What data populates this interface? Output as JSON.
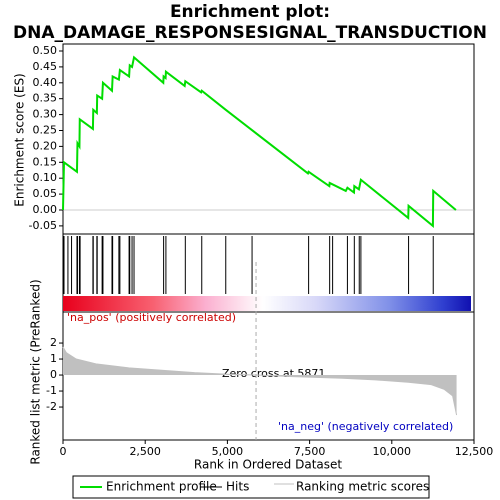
{
  "title": [
    "Enrichment plot:",
    "DNA_DAMAGE_RESPONSESIGNAL_TRANSDUCTION"
  ],
  "legend": [
    {
      "name": "Enrichment profile",
      "color": "#00dd00"
    },
    {
      "name": "Hits",
      "color": "#000000"
    },
    {
      "name": "Ranking metric scores",
      "color": "#c0c0c0"
    }
  ],
  "chart_data": [
    {
      "type": "line",
      "ylabel": "Enrichment score (ES)",
      "color": "#00dd00",
      "xlim": [
        0,
        12500
      ],
      "ylim": [
        -0.0755,
        0.522
      ],
      "yticks": [
        {
          "value": 0.5,
          "label": "0.50"
        },
        0.45,
        {
          "value": 0.4,
          "label": "0.40"
        },
        0.35,
        {
          "value": 0.3,
          "label": "0.30"
        },
        0.25,
        {
          "value": 0.2,
          "label": "0.20"
        },
        0.15,
        {
          "value": 0.1,
          "label": "0.10"
        },
        0.05,
        {
          "value": 0,
          "label": "0.00"
        },
        -0.05
      ],
      "x": [
        0,
        30,
        425,
        440,
        500,
        510,
        910,
        920,
        1030,
        1040,
        1190,
        1215,
        1490,
        1510,
        1700,
        1730,
        2010,
        2030,
        2100,
        2160,
        3050,
        3060,
        3120,
        3130,
        3700,
        3720,
        4200,
        4220,
        4950,
        7450,
        7470,
        8100,
        8110,
        8600,
        8650,
        8850,
        8860,
        9000,
        9060,
        10500,
        10510,
        11250,
        11260,
        11950
      ],
      "values": [
        0,
        0.15,
        0.12,
        0.21,
        0.2,
        0.285,
        0.255,
        0.315,
        0.305,
        0.36,
        0.35,
        0.4,
        0.375,
        0.42,
        0.41,
        0.44,
        0.42,
        0.455,
        0.45,
        0.48,
        0.4,
        0.42,
        0.415,
        0.435,
        0.39,
        0.405,
        0.37,
        0.375,
        0.315,
        0.115,
        0.12,
        0.075,
        0.085,
        0.06,
        0.07,
        0.055,
        0.075,
        0.065,
        0.095,
        -0.025,
        0.013,
        -0.05,
        0.06,
        0
      ]
    },
    {
      "type": "hits",
      "color": "#000000",
      "xlim": [
        0,
        12500
      ],
      "hits": [
        30,
        150,
        260,
        425,
        440,
        500,
        510,
        520,
        910,
        920,
        1030,
        1040,
        1190,
        1215,
        1490,
        1510,
        1700,
        1730,
        2010,
        2030,
        2100,
        2160,
        3060,
        3130,
        3720,
        4220,
        4950,
        5750,
        7470,
        8110,
        8200,
        8650,
        8860,
        9010,
        9060,
        10510,
        11260
      ]
    },
    {
      "type": "area",
      "ylabel": "Ranked list metric (PreRanked)",
      "xlabel": "Rank in Ordered Dataset",
      "color": "#c0c0c0",
      "xlim": [
        0,
        12500
      ],
      "ylim": [
        -4.06,
        3.94
      ],
      "xticks": [
        0,
        {
          "value": 2500,
          "label": "2,500"
        },
        {
          "value": 5000,
          "label": "5,000"
        },
        {
          "value": 7500,
          "label": "7,500"
        },
        {
          "value": 10000,
          "label": "10,000"
        },
        {
          "value": 12500,
          "label": "12,500"
        }
      ],
      "yticks": [
        2,
        1,
        0,
        -1,
        -2
      ],
      "x": [
        0,
        100,
        400,
        1000,
        2000,
        3000,
        4000,
        5000,
        5871,
        7000,
        8500,
        9500,
        10500,
        11200,
        11600,
        11850,
        11970
      ],
      "values": [
        1.75,
        1.4,
        1.0,
        0.7,
        0.45,
        0.3,
        0.15,
        0.05,
        0,
        -0.1,
        -0.2,
        -0.3,
        -0.45,
        -0.6,
        -0.9,
        -1.3,
        -2.5
      ],
      "zero_cross": 5871,
      "annotations": [
        "'na_pos' (positively correlated)",
        "Zero cross at 5871",
        "'na_neg' (negatively correlated)"
      ]
    }
  ]
}
